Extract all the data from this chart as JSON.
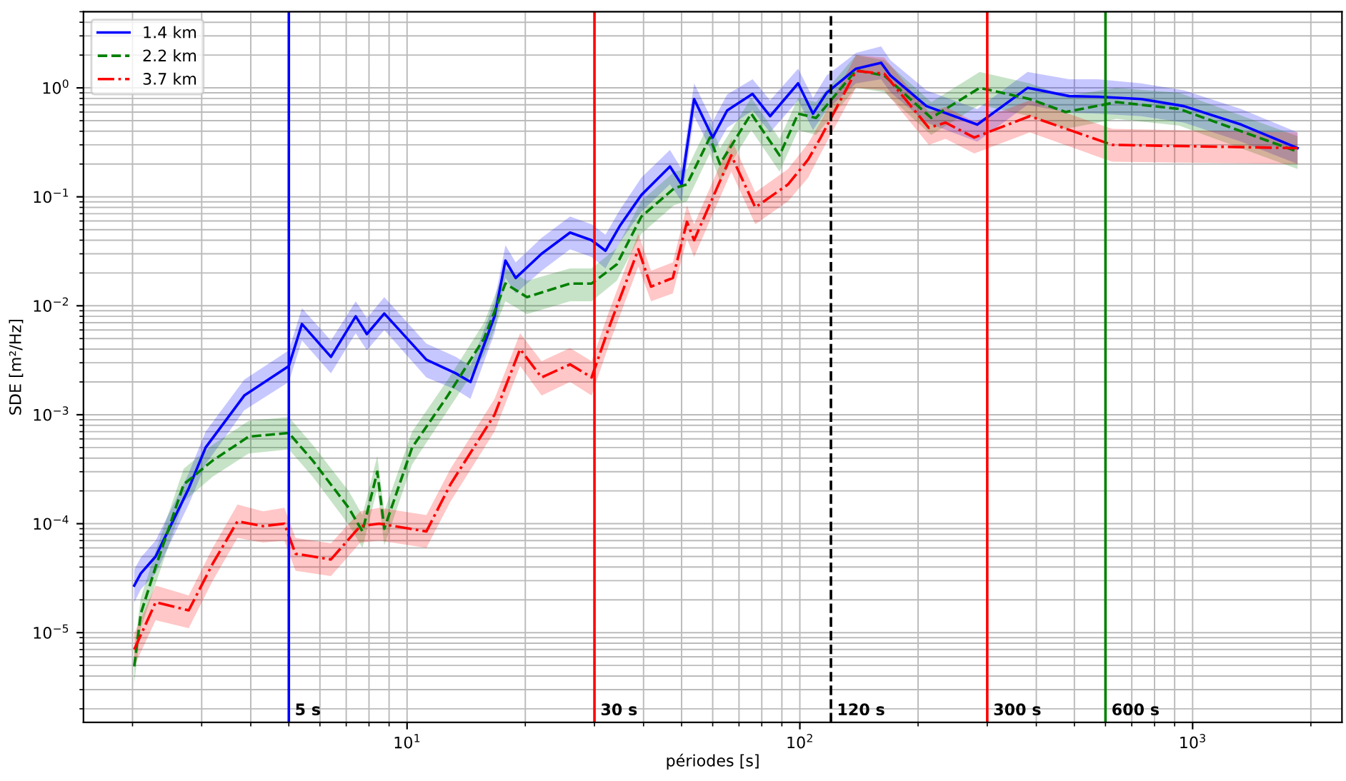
{
  "chart_data": {
    "type": "line",
    "xlabel": "périodes [s]",
    "ylabel": "SDE [m²/Hz]",
    "log": "xy",
    "grid": true,
    "legend": "top left",
    "xlim": [
      1.5,
      2400
    ],
    "ylim": [
      1.5e-06,
      5
    ],
    "xticks": [
      {
        "value": 10,
        "label": "10$^{1}$"
      },
      {
        "value": 100,
        "label": "10$^{2}$"
      },
      {
        "value": 1000,
        "label": "10$^{3}$"
      }
    ],
    "yticks": [
      {
        "value": 1e-05,
        "label": "10$^{−5}$"
      },
      {
        "value": 0.0001,
        "label": "10$^{−4}$"
      },
      {
        "value": 0.001,
        "label": "10$^{−3}$"
      },
      {
        "value": 0.01,
        "label": "10$^{−2}$"
      },
      {
        "value": 0.1,
        "label": "10$^{−1}$"
      },
      {
        "value": 1,
        "label": "10$^{0}$"
      }
    ],
    "ref_lines": [
      {
        "axis": "x",
        "value": 5,
        "label": "5 s",
        "color": "#0000ff",
        "line_style": "solid"
      },
      {
        "axis": "x",
        "value": 30,
        "label": "30 s",
        "color": "#ff0000",
        "line_style": "solid"
      },
      {
        "axis": "x",
        "value": 120,
        "label": "120 s",
        "color": "#000000",
        "line_style": "dashed"
      },
      {
        "axis": "x",
        "value": 300,
        "label": "300 s",
        "color": "#ff0000",
        "line_style": "solid"
      },
      {
        "axis": "x",
        "value": 600,
        "label": "600 s",
        "color": "#008000",
        "line_style": "solid"
      }
    ],
    "series": [
      {
        "name": "1.4 km",
        "color": "#0000ff",
        "line_style": "solid",
        "x": [
          2.02,
          2.1,
          2.29,
          2.78,
          3.07,
          3.85,
          5.0,
          5.4,
          6.4,
          7.4,
          7.9,
          8.75,
          11.2,
          13.3,
          14.5,
          16.7,
          17.8,
          18.9,
          22,
          26,
          29.5,
          32,
          34.8,
          39.5,
          46.7,
          50,
          53.8,
          60,
          65.3,
          75.8,
          84,
          99,
          108,
          117,
          139,
          161,
          170,
          210,
          283,
          380,
          485,
          575,
          740,
          950,
          1330,
          1850
        ],
        "values": [
          2.7e-05,
          3.5e-05,
          5e-05,
          0.00021,
          0.0005,
          0.0015,
          0.0028,
          0.0068,
          0.0034,
          0.008,
          0.0055,
          0.0085,
          0.0032,
          0.0024,
          0.002,
          0.008,
          0.026,
          0.018,
          0.03,
          0.047,
          0.04,
          0.032,
          0.054,
          0.104,
          0.19,
          0.13,
          0.79,
          0.35,
          0.62,
          0.88,
          0.55,
          1.1,
          0.58,
          0.9,
          1.5,
          1.7,
          1.3,
          0.68,
          0.46,
          1.0,
          0.84,
          0.83,
          0.79,
          0.68,
          0.46,
          0.28
        ],
        "lower": [
          1.9e-05,
          2.5e-05,
          3.5e-05,
          0.00015,
          0.00035,
          0.0011,
          0.002,
          0.0048,
          0.0024,
          0.0056,
          0.0039,
          0.006,
          0.0022,
          0.0017,
          0.0014,
          0.0056,
          0.018,
          0.013,
          0.021,
          0.033,
          0.028,
          0.022,
          0.038,
          0.073,
          0.13,
          0.091,
          0.55,
          0.25,
          0.43,
          0.62,
          0.39,
          0.77,
          0.41,
          0.63,
          1.1,
          1.2,
          0.91,
          0.48,
          0.32,
          0.7,
          0.59,
          0.58,
          0.55,
          0.48,
          0.32,
          0.2
        ],
        "upper": [
          3.8e-05,
          4.9e-05,
          7e-05,
          0.00029,
          0.0007,
          0.0021,
          0.0039,
          0.0095,
          0.0048,
          0.011,
          0.0077,
          0.012,
          0.0045,
          0.0034,
          0.0028,
          0.011,
          0.036,
          0.025,
          0.042,
          0.066,
          0.056,
          0.045,
          0.076,
          0.15,
          0.27,
          0.18,
          1.1,
          0.49,
          0.87,
          1.2,
          0.77,
          1.5,
          0.81,
          1.3,
          2.1,
          2.4,
          1.8,
          0.95,
          0.64,
          1.4,
          1.2,
          1.2,
          1.1,
          0.95,
          0.64,
          0.39
        ]
      },
      {
        "name": "2.2 km",
        "color": "#008000",
        "line_style": "dashed",
        "x": [
          2.02,
          2.1,
          2.29,
          2.7,
          3.2,
          3.95,
          5.0,
          5.75,
          7.1,
          7.7,
          8.4,
          8.75,
          10.3,
          12.7,
          15.7,
          17.8,
          20.2,
          26,
          29.5,
          34.2,
          39.5,
          47.9,
          51.6,
          59,
          62.6,
          75.2,
          88.8,
          99,
          110,
          139,
          164,
          216,
          287,
          385,
          475,
          640,
          925,
          1850
        ],
        "values": [
          4.9e-06,
          1.5e-05,
          4e-05,
          0.00023,
          0.00038,
          0.00063,
          0.00068,
          0.00038,
          0.00014,
          8.5e-05,
          0.0003,
          9e-05,
          0.0005,
          0.0015,
          0.005,
          0.016,
          0.012,
          0.016,
          0.016,
          0.024,
          0.066,
          0.12,
          0.13,
          0.35,
          0.2,
          0.58,
          0.24,
          0.58,
          0.53,
          1.45,
          1.3,
          0.53,
          1.0,
          0.79,
          0.6,
          0.74,
          0.64,
          0.26
        ],
        "lower": [
          3.4e-06,
          1.1e-05,
          2.8e-05,
          0.00016,
          0.00027,
          0.00044,
          0.00048,
          0.00027,
          9.8e-05,
          6e-05,
          0.00021,
          6.3e-05,
          0.00035,
          0.0011,
          0.0035,
          0.011,
          0.0084,
          0.011,
          0.011,
          0.017,
          0.046,
          0.084,
          0.091,
          0.25,
          0.14,
          0.41,
          0.17,
          0.41,
          0.37,
          1.0,
          0.91,
          0.37,
          0.7,
          0.55,
          0.42,
          0.52,
          0.45,
          0.18
        ],
        "upper": [
          6.9e-06,
          2.1e-05,
          5.6e-05,
          0.00032,
          0.00053,
          0.00088,
          0.00095,
          0.00053,
          0.0002,
          0.00012,
          0.00042,
          0.00013,
          0.0007,
          0.0021,
          0.007,
          0.022,
          0.017,
          0.022,
          0.022,
          0.034,
          0.092,
          0.17,
          0.18,
          0.49,
          0.28,
          0.81,
          0.34,
          0.81,
          0.74,
          2.0,
          1.8,
          0.74,
          1.4,
          1.1,
          0.84,
          1.0,
          0.9,
          0.36
        ]
      },
      {
        "name": "3.7 km",
        "color": "#ff0000",
        "line_style": "dashdot",
        "x": [
          2.02,
          2.29,
          2.78,
          3.2,
          3.7,
          4.3,
          4.87,
          5.2,
          6.4,
          7.6,
          8.5,
          11.2,
          12.9,
          16.7,
          19.4,
          22,
          26,
          29.5,
          32.6,
          38.8,
          41.8,
          47.5,
          51.6,
          53.8,
          66.9,
          77,
          93.3,
          105,
          113,
          139,
          164,
          213,
          235,
          278,
          385,
          624,
          1850
        ],
        "values": [
          7e-06,
          1.9e-05,
          1.6e-05,
          4.3e-05,
          0.000105,
          9.5e-05,
          0.0001,
          5.3e-05,
          4.7e-05,
          9.5e-05,
          0.0001,
          8.5e-05,
          0.00023,
          0.001,
          0.004,
          0.0022,
          0.0029,
          0.0022,
          0.0062,
          0.033,
          0.015,
          0.018,
          0.059,
          0.04,
          0.24,
          0.08,
          0.13,
          0.22,
          0.35,
          1.43,
          1.35,
          0.43,
          0.48,
          0.35,
          0.55,
          0.3,
          0.28
        ],
        "lower": [
          4.9e-06,
          1.3e-05,
          1.1e-05,
          3e-05,
          7.4e-05,
          6.7e-05,
          7e-05,
          3.7e-05,
          3.3e-05,
          6.7e-05,
          7e-05,
          6e-05,
          0.00016,
          0.0007,
          0.0028,
          0.0015,
          0.002,
          0.0015,
          0.0043,
          0.023,
          0.011,
          0.013,
          0.041,
          0.028,
          0.17,
          0.056,
          0.091,
          0.15,
          0.25,
          1.0,
          0.95,
          0.3,
          0.34,
          0.25,
          0.39,
          0.21,
          0.2
        ],
        "upper": [
          9.8e-06,
          2.7e-05,
          2.2e-05,
          6e-05,
          0.00015,
          0.00013,
          0.00014,
          7.4e-05,
          6.6e-05,
          0.00013,
          0.00014,
          0.00012,
          0.00032,
          0.0014,
          0.0056,
          0.0031,
          0.0041,
          0.0031,
          0.0087,
          0.046,
          0.021,
          0.025,
          0.083,
          0.056,
          0.34,
          0.11,
          0.18,
          0.31,
          0.49,
          2.0,
          1.9,
          0.6,
          0.67,
          0.49,
          0.77,
          0.42,
          0.39
        ]
      }
    ]
  }
}
